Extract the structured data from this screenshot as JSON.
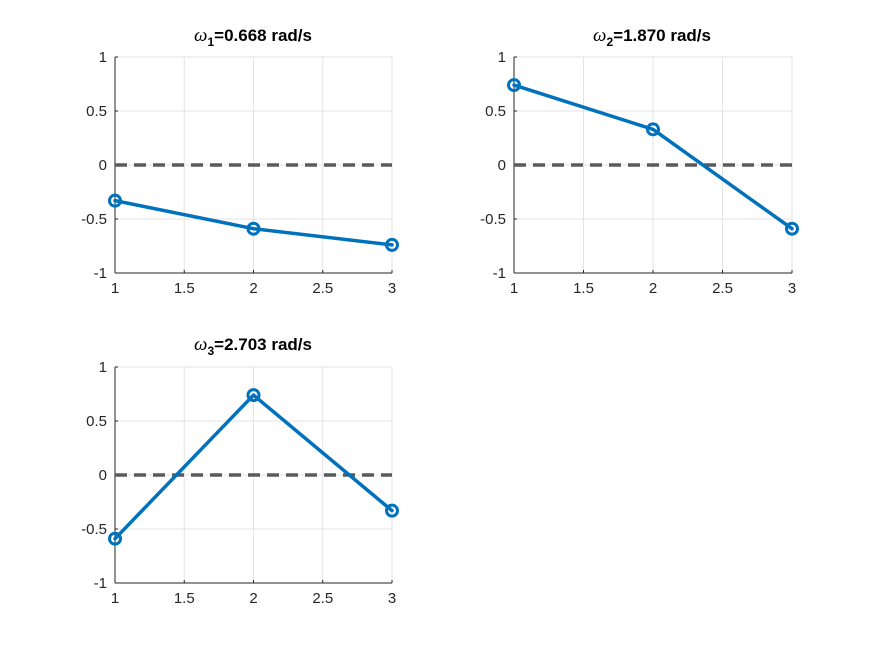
{
  "colors": {
    "series": "#0072BD",
    "reference": "#5a5a5a",
    "grid": "#e3e3e3",
    "axis": "#262626",
    "background": "#ffffff"
  },
  "chart_data": [
    {
      "type": "line",
      "title": {
        "symbol": "ω",
        "subscript": "1",
        "rest": "=0.668 rad/s"
      },
      "x": [
        1,
        2,
        3
      ],
      "series": [
        {
          "values": [
            -0.33,
            -0.59,
            -0.74
          ],
          "marker": "circle"
        }
      ],
      "reference_line": {
        "y": 0,
        "style": "dashed"
      },
      "xlim": [
        1,
        3
      ],
      "ylim": [
        -1,
        1
      ],
      "xticks": [
        "1",
        "1.5",
        "2",
        "2.5",
        "3"
      ],
      "yticks": [
        "1",
        "0.5",
        "0",
        "-0.5",
        "-1"
      ],
      "grid": true
    },
    {
      "type": "line",
      "title": {
        "symbol": "ω",
        "subscript": "2",
        "rest": "=1.870 rad/s"
      },
      "x": [
        1,
        2,
        3
      ],
      "series": [
        {
          "values": [
            0.74,
            0.33,
            -0.59
          ],
          "marker": "circle"
        }
      ],
      "reference_line": {
        "y": 0,
        "style": "dashed"
      },
      "xlim": [
        1,
        3
      ],
      "ylim": [
        -1,
        1
      ],
      "xticks": [
        "1",
        "1.5",
        "2",
        "2.5",
        "3"
      ],
      "yticks": [
        "1",
        "0.5",
        "0",
        "-0.5",
        "-1"
      ],
      "grid": true
    },
    {
      "type": "line",
      "title": {
        "symbol": "ω",
        "subscript": "3",
        "rest": "=2.703 rad/s"
      },
      "x": [
        1,
        2,
        3
      ],
      "series": [
        {
          "values": [
            -0.59,
            0.74,
            -0.33
          ],
          "marker": "circle"
        }
      ],
      "reference_line": {
        "y": 0,
        "style": "dashed"
      },
      "xlim": [
        1,
        3
      ],
      "ylim": [
        -1,
        1
      ],
      "xticks": [
        "1",
        "1.5",
        "2",
        "2.5",
        "3"
      ],
      "yticks": [
        "1",
        "0.5",
        "0",
        "-0.5",
        "-1"
      ],
      "grid": true
    }
  ]
}
